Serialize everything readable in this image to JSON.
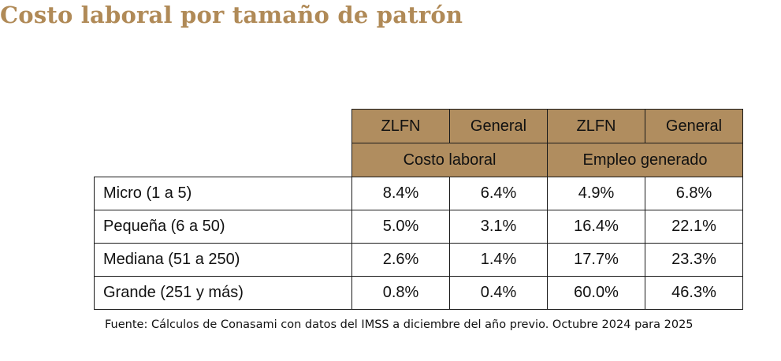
{
  "title": "Costo laboral por tamaño de patrón",
  "table": {
    "header_row1": [
      "ZLFN",
      "General",
      "ZLFN",
      "General"
    ],
    "header_row2": [
      "Costo laboral",
      "Empleo generado"
    ],
    "rows": [
      {
        "label": "Micro (1 a 5)",
        "values": [
          "8.4%",
          "6.4%",
          "4.9%",
          "6.8%"
        ]
      },
      {
        "label": "Pequeña (6 a 50)",
        "values": [
          "5.0%",
          "3.1%",
          "16.4%",
          "22.1%"
        ]
      },
      {
        "label": "Mediana (51 a 250)",
        "values": [
          "2.6%",
          "1.4%",
          "17.7%",
          "23.3%"
        ]
      },
      {
        "label": "Grande (251 y más)",
        "values": [
          "0.8%",
          "0.4%",
          "60.0%",
          "46.3%"
        ]
      }
    ]
  },
  "source": "Fuente: Cálculos de Conasami con datos del IMSS a diciembre del año previo. Octubre 2024 para 2025",
  "colors": {
    "title": "#b08a57",
    "header_fill": "#b08d5f",
    "border": "#1a1a1a"
  }
}
